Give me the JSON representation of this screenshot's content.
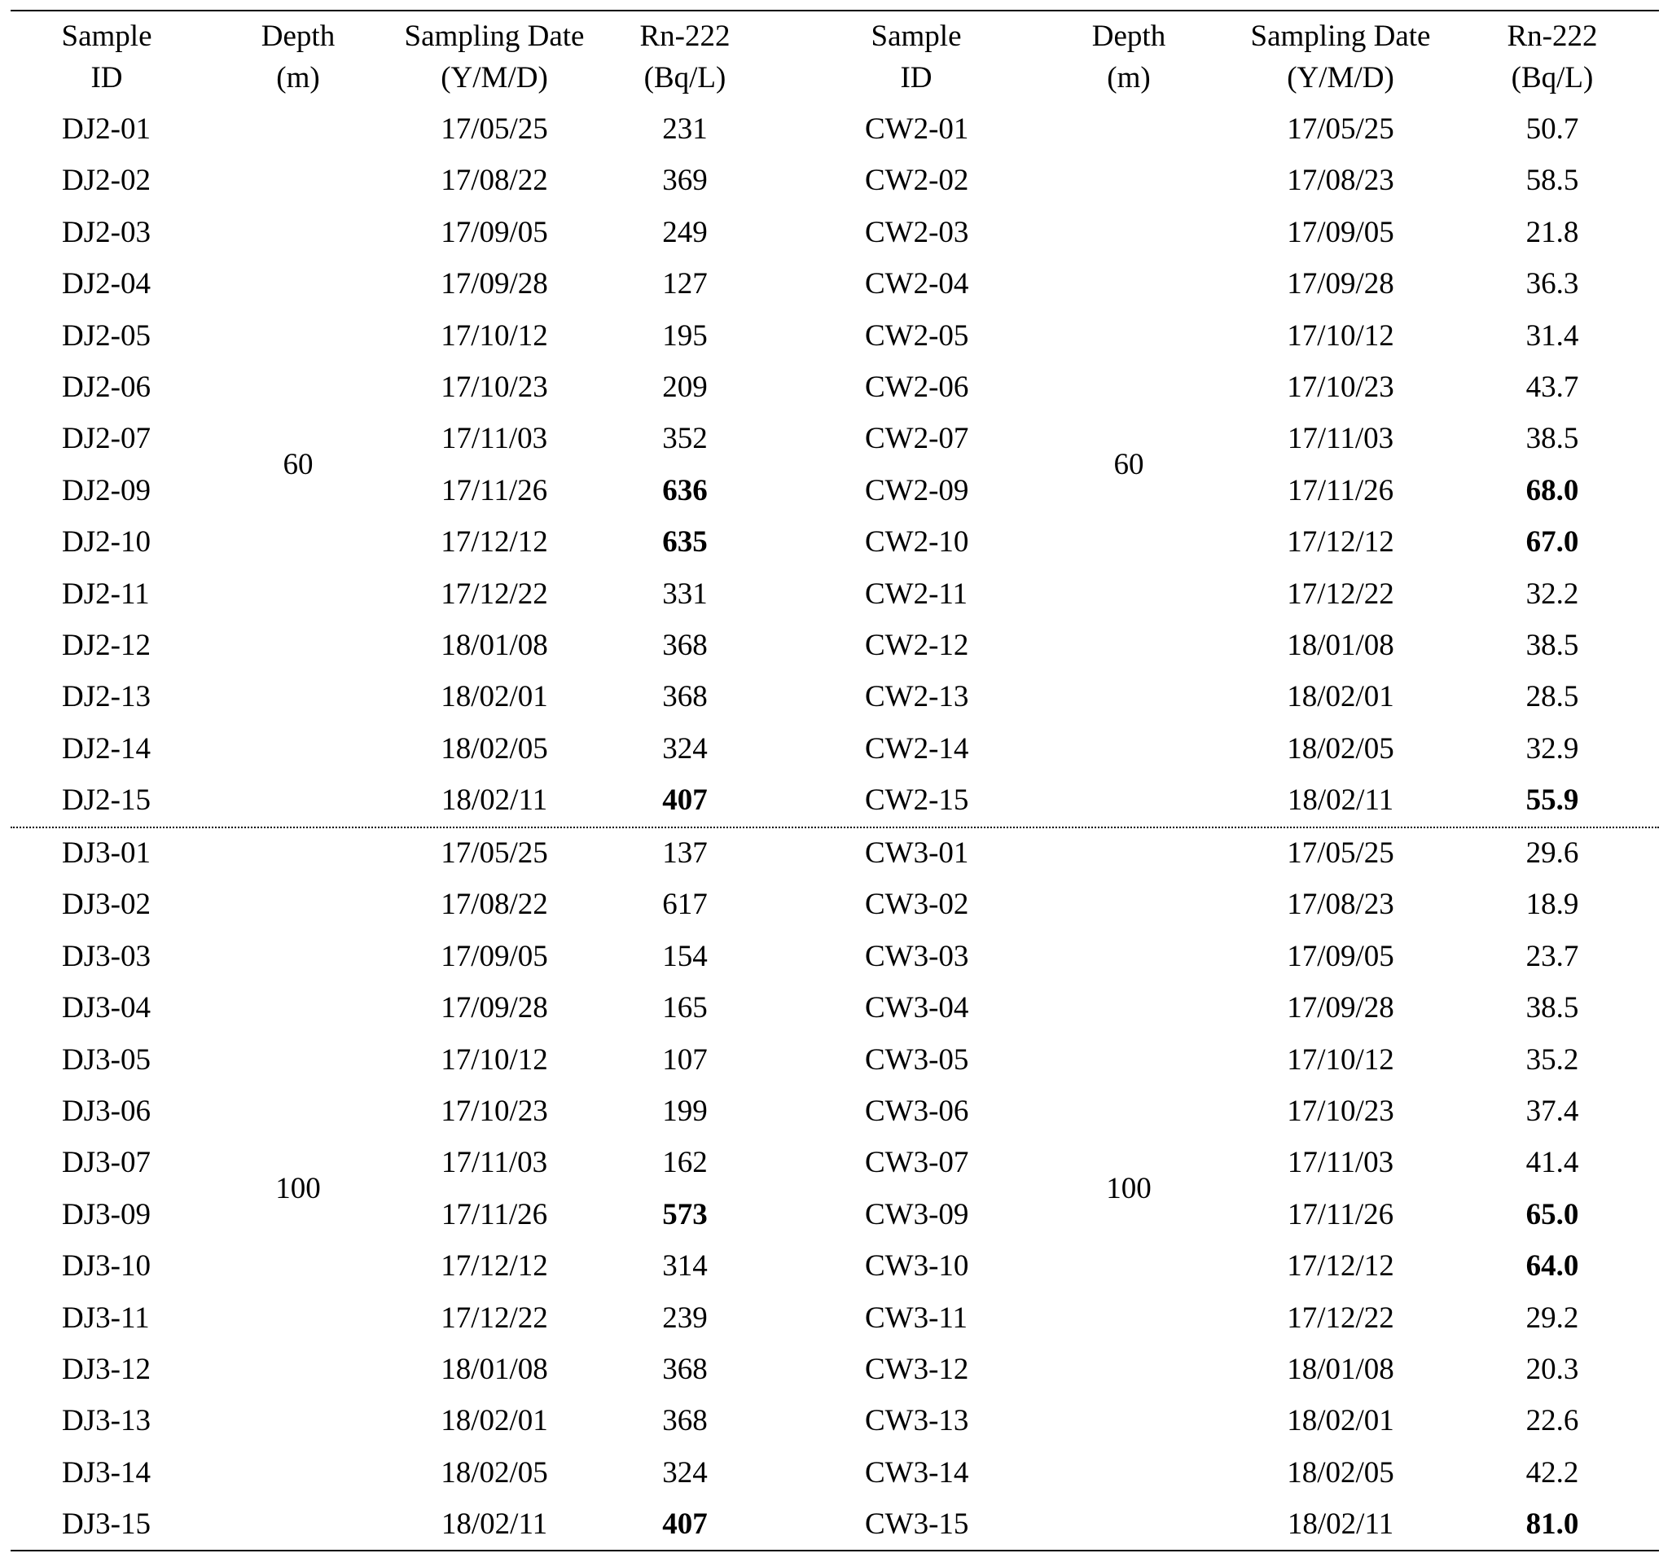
{
  "headers": [
    {
      "line1": "Sample",
      "line2": "ID"
    },
    {
      "line1": "Depth",
      "line2": "(m)"
    },
    {
      "line1": "Sampling Date",
      "line2": "(Y/M/D)"
    },
    {
      "line1": "Rn-222",
      "line2": "(Bq/L)"
    },
    {
      "line1": "Sample",
      "line2": "ID"
    },
    {
      "line1": "Depth",
      "line2": "(m)"
    },
    {
      "line1": "Sampling Date",
      "line2": "(Y/M/D)"
    },
    {
      "line1": "Rn-222",
      "line2": "(Bq/L)"
    }
  ],
  "left_groups": [
    {
      "depth": "60",
      "rows": [
        {
          "id": "DJ2-01",
          "date": "17/05/25",
          "rn": "231",
          "bold": false
        },
        {
          "id": "DJ2-02",
          "date": "17/08/22",
          "rn": "369",
          "bold": false
        },
        {
          "id": "DJ2-03",
          "date": "17/09/05",
          "rn": "249",
          "bold": false
        },
        {
          "id": "DJ2-04",
          "date": "17/09/28",
          "rn": "127",
          "bold": false
        },
        {
          "id": "DJ2-05",
          "date": "17/10/12",
          "rn": "195",
          "bold": false
        },
        {
          "id": "DJ2-06",
          "date": "17/10/23",
          "rn": "209",
          "bold": false
        },
        {
          "id": "DJ2-07",
          "date": "17/11/03",
          "rn": "352",
          "bold": false
        },
        {
          "id": "DJ2-09",
          "date": "17/11/26",
          "rn": "636",
          "bold": true
        },
        {
          "id": "DJ2-10",
          "date": "17/12/12",
          "rn": "635",
          "bold": true
        },
        {
          "id": "DJ2-11",
          "date": "17/12/22",
          "rn": "331",
          "bold": false
        },
        {
          "id": "DJ2-12",
          "date": "18/01/08",
          "rn": "368",
          "bold": false
        },
        {
          "id": "DJ2-13",
          "date": "18/02/01",
          "rn": "368",
          "bold": false
        },
        {
          "id": "DJ2-14",
          "date": "18/02/05",
          "rn": "324",
          "bold": false
        },
        {
          "id": "DJ2-15",
          "date": "18/02/11",
          "rn": "407",
          "bold": true
        }
      ]
    },
    {
      "depth": "100",
      "rows": [
        {
          "id": "DJ3-01",
          "date": "17/05/25",
          "rn": "137",
          "bold": false
        },
        {
          "id": "DJ3-02",
          "date": "17/08/22",
          "rn": "617",
          "bold": false
        },
        {
          "id": "DJ3-03",
          "date": "17/09/05",
          "rn": "154",
          "bold": false
        },
        {
          "id": "DJ3-04",
          "date": "17/09/28",
          "rn": "165",
          "bold": false
        },
        {
          "id": "DJ3-05",
          "date": "17/10/12",
          "rn": "107",
          "bold": false
        },
        {
          "id": "DJ3-06",
          "date": "17/10/23",
          "rn": "199",
          "bold": false
        },
        {
          "id": "DJ3-07",
          "date": "17/11/03",
          "rn": "162",
          "bold": false
        },
        {
          "id": "DJ3-09",
          "date": "17/11/26",
          "rn": "573",
          "bold": true
        },
        {
          "id": "DJ3-10",
          "date": "17/12/12",
          "rn": "314",
          "bold": false
        },
        {
          "id": "DJ3-11",
          "date": "17/12/22",
          "rn": "239",
          "bold": false
        },
        {
          "id": "DJ3-12",
          "date": "18/01/08",
          "rn": "368",
          "bold": false
        },
        {
          "id": "DJ3-13",
          "date": "18/02/01",
          "rn": "368",
          "bold": false
        },
        {
          "id": "DJ3-14",
          "date": "18/02/05",
          "rn": "324",
          "bold": false
        },
        {
          "id": "DJ3-15",
          "date": "18/02/11",
          "rn": "407",
          "bold": true
        }
      ]
    }
  ],
  "right_groups": [
    {
      "depth": "60",
      "rows": [
        {
          "id": "CW2-01",
          "date": "17/05/25",
          "rn": "50.7",
          "bold": false
        },
        {
          "id": "CW2-02",
          "date": "17/08/23",
          "rn": "58.5",
          "bold": false
        },
        {
          "id": "CW2-03",
          "date": "17/09/05",
          "rn": "21.8",
          "bold": false
        },
        {
          "id": "CW2-04",
          "date": "17/09/28",
          "rn": "36.3",
          "bold": false
        },
        {
          "id": "CW2-05",
          "date": "17/10/12",
          "rn": "31.4",
          "bold": false
        },
        {
          "id": "CW2-06",
          "date": "17/10/23",
          "rn": "43.7",
          "bold": false
        },
        {
          "id": "CW2-07",
          "date": "17/11/03",
          "rn": "38.5",
          "bold": false
        },
        {
          "id": "CW2-09",
          "date": "17/11/26",
          "rn": "68.0",
          "bold": true
        },
        {
          "id": "CW2-10",
          "date": "17/12/12",
          "rn": "67.0",
          "bold": true
        },
        {
          "id": "CW2-11",
          "date": "17/12/22",
          "rn": "32.2",
          "bold": false
        },
        {
          "id": "CW2-12",
          "date": "18/01/08",
          "rn": "38.5",
          "bold": false
        },
        {
          "id": "CW2-13",
          "date": "18/02/01",
          "rn": "28.5",
          "bold": false
        },
        {
          "id": "CW2-14",
          "date": "18/02/05",
          "rn": "32.9",
          "bold": false
        },
        {
          "id": "CW2-15",
          "date": "18/02/11",
          "rn": "55.9",
          "bold": true
        }
      ]
    },
    {
      "depth": "100",
      "rows": [
        {
          "id": "CW3-01",
          "date": "17/05/25",
          "rn": "29.6",
          "bold": false
        },
        {
          "id": "CW3-02",
          "date": "17/08/23",
          "rn": "18.9",
          "bold": false
        },
        {
          "id": "CW3-03",
          "date": "17/09/05",
          "rn": "23.7",
          "bold": false
        },
        {
          "id": "CW3-04",
          "date": "17/09/28",
          "rn": "38.5",
          "bold": false
        },
        {
          "id": "CW3-05",
          "date": "17/10/12",
          "rn": "35.2",
          "bold": false
        },
        {
          "id": "CW3-06",
          "date": "17/10/23",
          "rn": "37.4",
          "bold": false
        },
        {
          "id": "CW3-07",
          "date": "17/11/03",
          "rn": "41.4",
          "bold": false
        },
        {
          "id": "CW3-09",
          "date": "17/11/26",
          "rn": "65.0",
          "bold": true
        },
        {
          "id": "CW3-10",
          "date": "17/12/12",
          "rn": "64.0",
          "bold": true
        },
        {
          "id": "CW3-11",
          "date": "17/12/22",
          "rn": "29.2",
          "bold": false
        },
        {
          "id": "CW3-12",
          "date": "18/01/08",
          "rn": "20.3",
          "bold": false
        },
        {
          "id": "CW3-13",
          "date": "18/02/01",
          "rn": "22.6",
          "bold": false
        },
        {
          "id": "CW3-14",
          "date": "18/02/05",
          "rn": "42.2",
          "bold": false
        },
        {
          "id": "CW3-15",
          "date": "18/02/11",
          "rn": "81.0",
          "bold": true
        }
      ]
    }
  ]
}
